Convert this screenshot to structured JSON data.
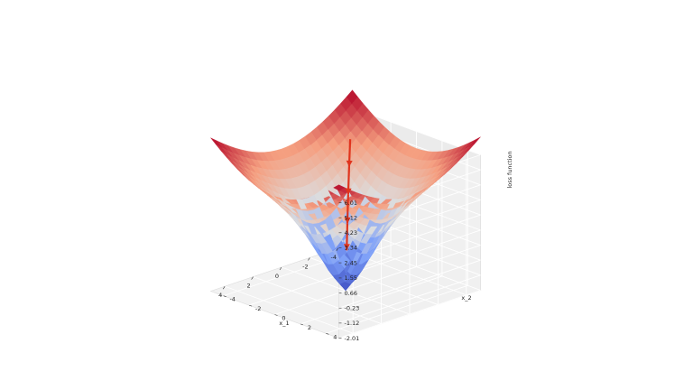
{
  "chart_data": {
    "type": "surface3d",
    "surface": {
      "function": "sqrt(x_1^2 + x_2^2) - 2*exp(-(x_1^2 + x_2^2)/4)",
      "x_range": [
        -5,
        5
      ],
      "y_range": [
        -5,
        5
      ],
      "colormap": "coolwarm"
    },
    "descent_path": {
      "color": "#e0341d",
      "points": [
        [
          -3.4,
          -3.4
        ],
        [
          -2.6,
          -2.6
        ],
        [
          -1.9,
          -1.9
        ],
        [
          -1.3,
          -1.3
        ],
        [
          -0.8,
          -0.8
        ]
      ]
    },
    "x_axis": {
      "label": "x_1",
      "ticks": [
        "-4",
        "-2",
        "0",
        "2",
        "4"
      ],
      "range": [
        -5,
        5
      ]
    },
    "y_axis": {
      "label": "x_2",
      "ticks": [
        "-4",
        "-2",
        "0",
        "2",
        "4"
      ],
      "range": [
        -5,
        5
      ]
    },
    "z_axis": {
      "label": "loss function",
      "ticks": [
        "-2.01",
        "-1.12",
        "-0.23",
        "0.66",
        "1.55",
        "2.45",
        "3.34",
        "4.23",
        "5.12",
        "6.01"
      ],
      "range": [
        -2.01,
        6.01
      ]
    },
    "grid": true
  }
}
